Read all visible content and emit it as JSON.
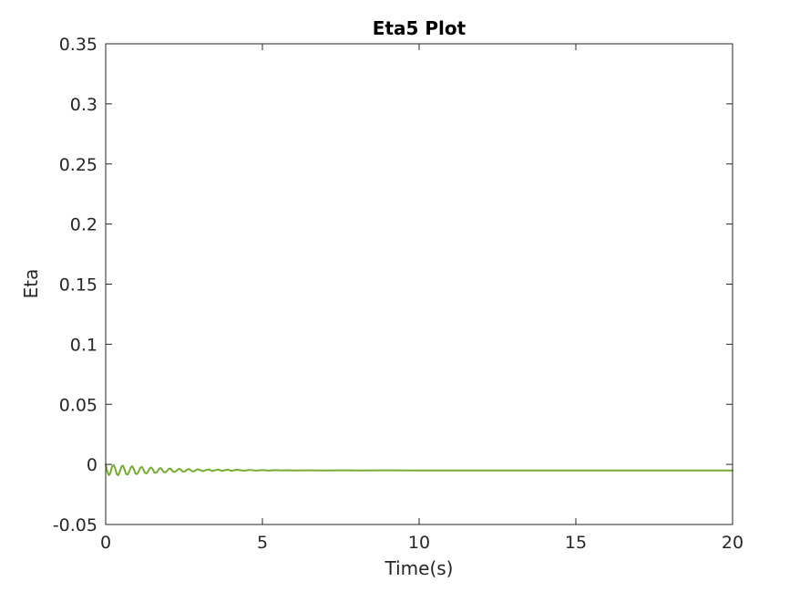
{
  "chart_data": {
    "type": "line",
    "title": "Eta5 Plot",
    "xlabel": "Time(s)",
    "ylabel": "Eta",
    "xlim": [
      0,
      20
    ],
    "ylim": [
      -0.05,
      0.35
    ],
    "xticks": [
      0,
      5,
      10,
      15,
      20
    ],
    "xtick_labels": [
      "0",
      "5",
      "10",
      "15",
      "20"
    ],
    "yticks": [
      -0.05,
      0,
      0.05,
      0.1,
      0.15,
      0.2,
      0.25,
      0.3,
      0.35
    ],
    "ytick_labels": [
      "-0.05",
      "0",
      "0.05",
      "0.1",
      "0.15",
      "0.2",
      "0.25",
      "0.3",
      "0.35"
    ],
    "grid": false,
    "box": true,
    "series": [
      {
        "color": "#77ac30",
        "x": [
          0,
          0.05,
          0.1,
          0.15,
          0.2,
          0.25,
          0.3,
          0.35,
          0.4,
          0.45,
          0.5,
          0.55,
          0.6,
          0.65,
          0.7,
          0.75,
          0.8,
          0.85,
          0.9,
          0.95,
          1.0,
          1.05,
          1.1,
          1.15,
          1.2,
          1.25,
          1.3,
          1.35,
          1.4,
          1.45,
          1.5,
          1.55,
          1.6,
          1.65,
          1.7,
          1.75,
          1.8,
          1.85,
          1.9,
          1.95,
          2.0,
          2.05,
          2.1,
          2.15,
          2.2,
          2.25,
          2.3,
          2.35,
          2.4,
          2.45,
          2.5,
          2.55,
          2.6,
          2.65,
          2.7,
          2.75,
          2.8,
          2.85,
          2.9,
          2.95,
          3.0,
          3.1,
          3.2,
          3.3,
          3.4,
          3.5,
          3.6,
          3.7,
          3.8,
          3.9,
          4.0,
          4.2,
          4.4,
          4.6,
          4.8,
          5.0,
          5.2,
          5.4,
          5.6,
          5.8,
          6.0,
          6.5,
          7.0,
          7.5,
          8.0,
          9.0,
          10.0,
          12.0,
          14.0,
          16.0,
          18.0,
          20.0
        ],
        "y": [
          0,
          -0.006,
          -0.009,
          -0.007,
          -0.002,
          -0.0005,
          -0.003,
          -0.008,
          -0.009,
          -0.006,
          -0.002,
          -0.001,
          -0.004,
          -0.008,
          -0.0085,
          -0.006,
          -0.0025,
          -0.0015,
          -0.004,
          -0.0075,
          -0.008,
          -0.006,
          -0.003,
          -0.002,
          -0.004,
          -0.007,
          -0.0075,
          -0.006,
          -0.0035,
          -0.0025,
          -0.004,
          -0.0068,
          -0.007,
          -0.0058,
          -0.0038,
          -0.003,
          -0.0042,
          -0.0064,
          -0.0066,
          -0.0056,
          -0.004,
          -0.0033,
          -0.0043,
          -0.0061,
          -0.0063,
          -0.0055,
          -0.0042,
          -0.0036,
          -0.0044,
          -0.0059,
          -0.006,
          -0.0054,
          -0.0043,
          -0.0038,
          -0.0045,
          -0.0057,
          -0.0058,
          -0.0053,
          -0.0044,
          -0.004,
          -0.0046,
          -0.0056,
          -0.0047,
          -0.0042,
          -0.0055,
          -0.0048,
          -0.0043,
          -0.0054,
          -0.0048,
          -0.0044,
          -0.0053,
          -0.0045,
          -0.0052,
          -0.0046,
          -0.0051,
          -0.0047,
          -0.0051,
          -0.0047,
          -0.005,
          -0.0048,
          -0.005,
          -0.0049,
          -0.005,
          -0.0049,
          -0.005,
          -0.0049,
          -0.005,
          -0.005,
          -0.005,
          -0.005,
          -0.005,
          -0.005
        ]
      }
    ]
  }
}
